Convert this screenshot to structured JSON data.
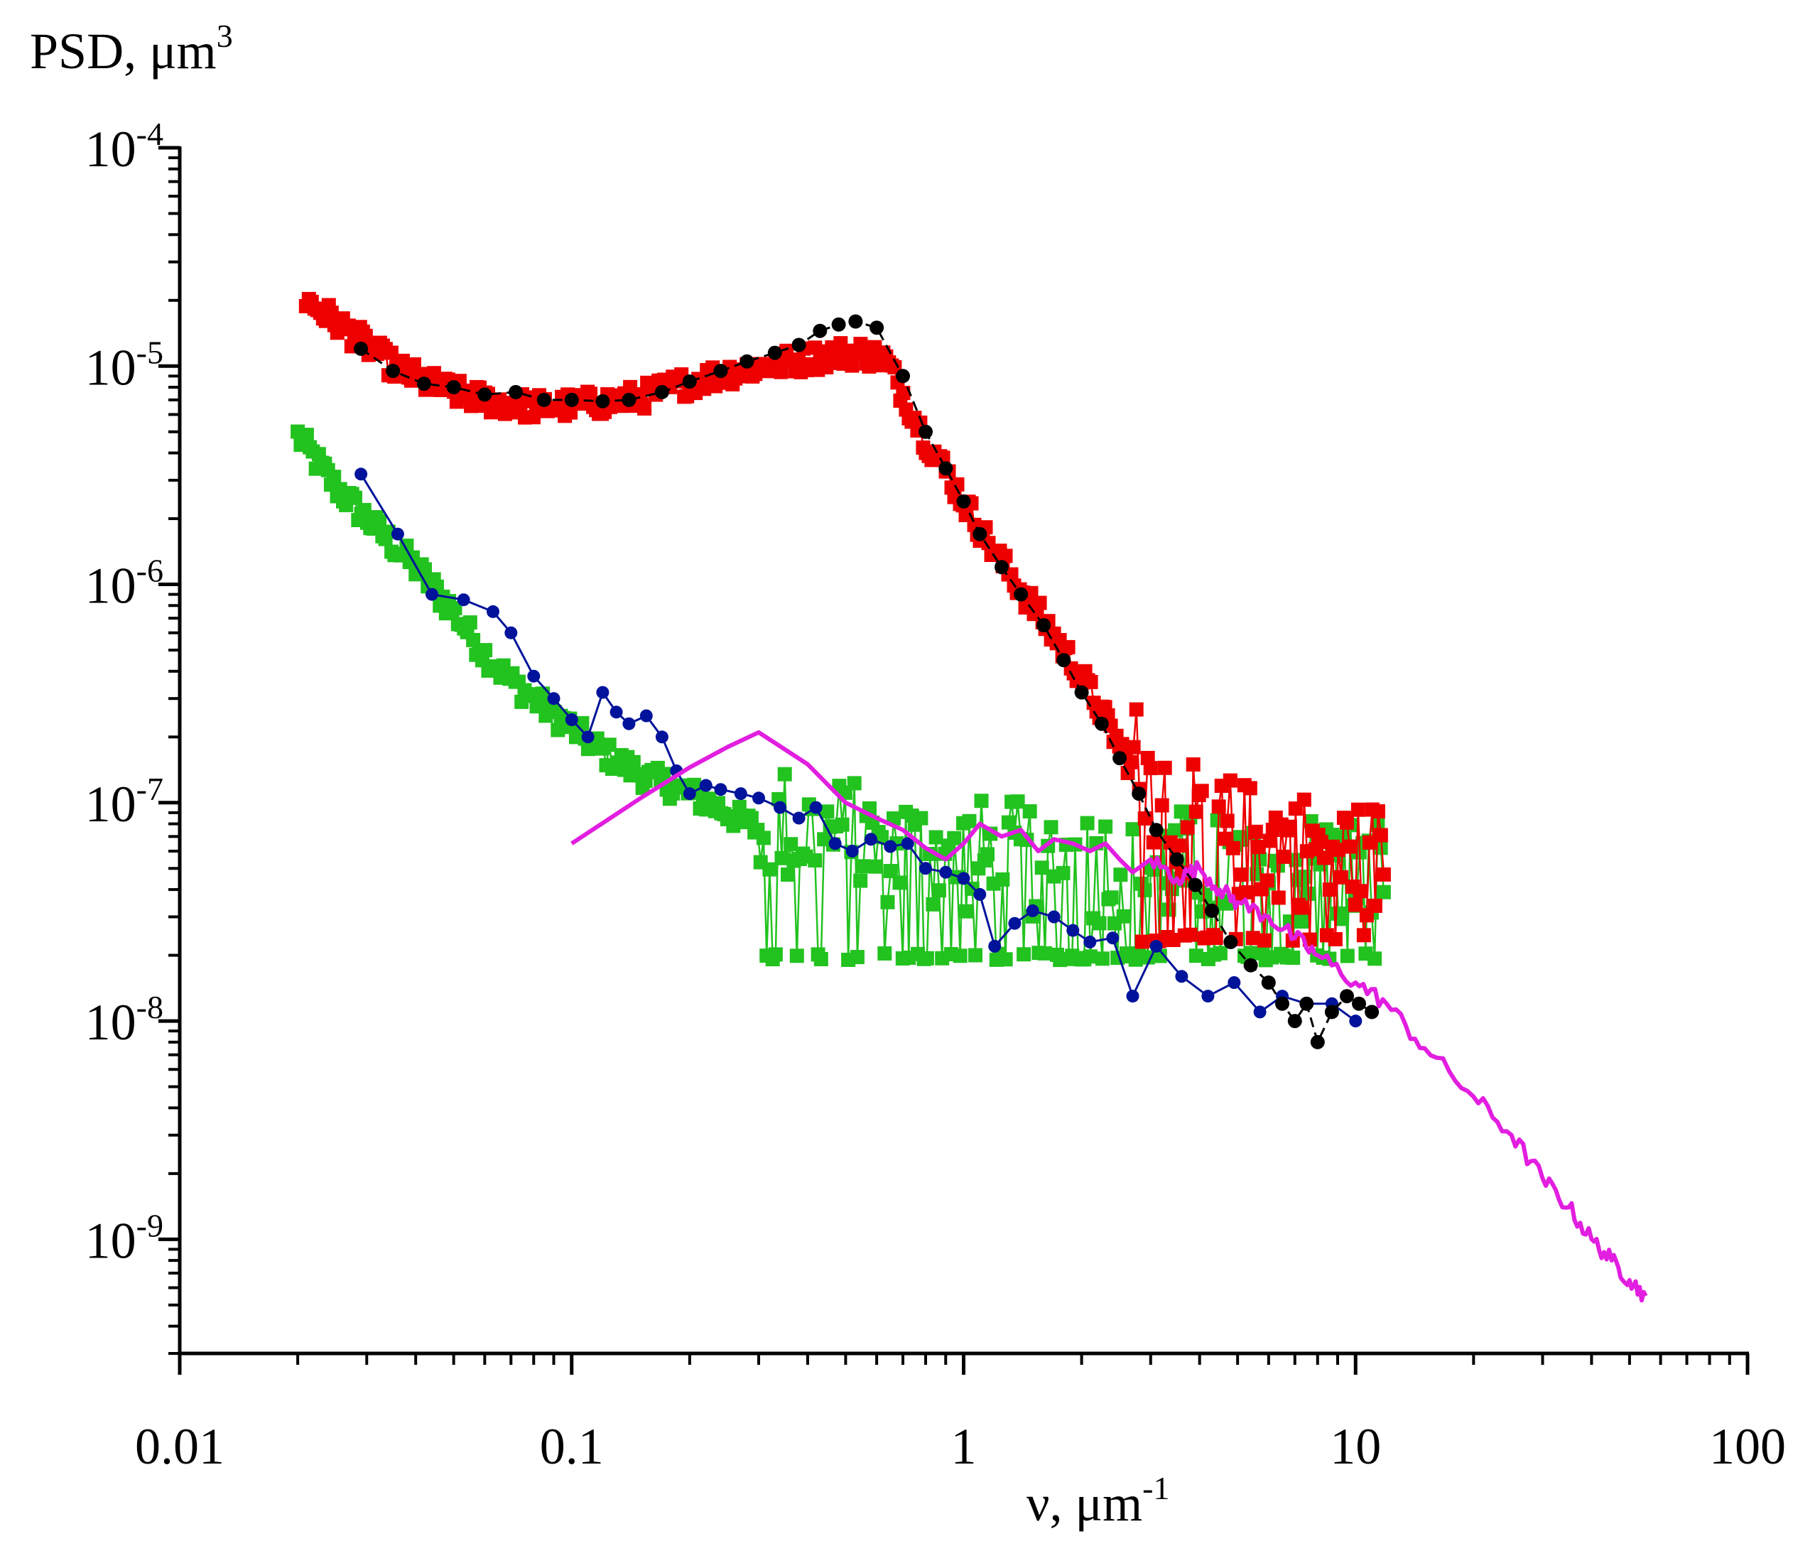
{
  "chart_data": {
    "type": "scatter",
    "xscale": "log",
    "yscale": "log",
    "xlim": [
      0.01,
      100
    ],
    "ylim": [
      3e-10,
      0.0001
    ],
    "ylabel_base": "PSD, μm",
    "ylabel_sup": "3",
    "xlabel_base": "ν, μm",
    "xlabel_sup": "-1",
    "x_ticks": [
      {
        "value": 0.01,
        "label": "0.01"
      },
      {
        "value": 0.1,
        "label": "0.1"
      },
      {
        "value": 1,
        "label": "1"
      },
      {
        "value": 10,
        "label": "10"
      },
      {
        "value": 100,
        "label": "100"
      }
    ],
    "y_ticks": [
      {
        "value": 0.0001,
        "base": "10",
        "exp": "-4"
      },
      {
        "value": 1e-05,
        "base": "10",
        "exp": "-5"
      },
      {
        "value": 1e-06,
        "base": "10",
        "exp": "-6"
      },
      {
        "value": 1e-07,
        "base": "10",
        "exp": "-7"
      },
      {
        "value": 1e-08,
        "base": "10",
        "exp": "-8"
      },
      {
        "value": 1e-09,
        "base": "10",
        "exp": "-9"
      }
    ],
    "series": [
      {
        "name": "black circles",
        "color": "#000000",
        "marker": "circle",
        "line": "dashed",
        "points": [
          [
            0.029,
            1.2e-05
          ],
          [
            0.035,
            9.5e-06
          ],
          [
            0.042,
            8.3e-06
          ],
          [
            0.05,
            8e-06
          ],
          [
            0.06,
            7.4e-06
          ],
          [
            0.072,
            7.6e-06
          ],
          [
            0.085,
            7e-06
          ],
          [
            0.1,
            7e-06
          ],
          [
            0.12,
            6.9e-06
          ],
          [
            0.14,
            7e-06
          ],
          [
            0.17,
            7.6e-06
          ],
          [
            0.2,
            8.5e-06
          ],
          [
            0.24,
            9.5e-06
          ],
          [
            0.28,
            1.05e-05
          ],
          [
            0.33,
            1.15e-05
          ],
          [
            0.38,
            1.25e-05
          ],
          [
            0.43,
            1.45e-05
          ],
          [
            0.48,
            1.55e-05
          ],
          [
            0.53,
            1.6e-05
          ],
          [
            0.6,
            1.5e-05
          ],
          [
            0.7,
            9e-06
          ],
          [
            0.8,
            5e-06
          ],
          [
            0.9,
            3.4e-06
          ],
          [
            1.0,
            2.4e-06
          ],
          [
            1.1,
            1.7e-06
          ],
          [
            1.25,
            1.2e-06
          ],
          [
            1.4,
            9e-07
          ],
          [
            1.6,
            6.5e-07
          ],
          [
            1.8,
            4.5e-07
          ],
          [
            2.0,
            3.2e-07
          ],
          [
            2.25,
            2.3e-07
          ],
          [
            2.5,
            1.6e-07
          ],
          [
            2.8,
            1.1e-07
          ],
          [
            3.1,
            7.5e-08
          ],
          [
            3.5,
            5.5e-08
          ],
          [
            3.9,
            4.2e-08
          ],
          [
            4.3,
            3.2e-08
          ],
          [
            4.8,
            2.3e-08
          ],
          [
            5.4,
            1.8e-08
          ],
          [
            6.0,
            1.5e-08
          ],
          [
            6.5,
            1.2e-08
          ],
          [
            7.0,
            1e-08
          ],
          [
            7.5,
            1.2e-08
          ],
          [
            8.0,
            8e-09
          ],
          [
            8.7,
            1.1e-08
          ],
          [
            9.5,
            1.3e-08
          ],
          [
            10.2,
            1.2e-08
          ],
          [
            11.0,
            1.1e-08
          ]
        ]
      },
      {
        "name": "blue circles",
        "color": "#00139a",
        "marker": "circle",
        "line": "solid",
        "points": [
          [
            0.029,
            3.2e-06
          ],
          [
            0.036,
            1.7e-06
          ],
          [
            0.044,
            9e-07
          ],
          [
            0.053,
            8.5e-07
          ],
          [
            0.063,
            7.5e-07
          ],
          [
            0.07,
            6e-07
          ],
          [
            0.08,
            3.8e-07
          ],
          [
            0.09,
            3e-07
          ],
          [
            0.1,
            2.4e-07
          ],
          [
            0.11,
            2e-07
          ],
          [
            0.12,
            3.2e-07
          ],
          [
            0.13,
            2.6e-07
          ],
          [
            0.14,
            2.3e-07
          ],
          [
            0.155,
            2.5e-07
          ],
          [
            0.17,
            2e-07
          ],
          [
            0.185,
            1.4e-07
          ],
          [
            0.2,
            1.1e-07
          ],
          [
            0.22,
            1.2e-07
          ],
          [
            0.24,
            1.15e-07
          ],
          [
            0.27,
            1.1e-07
          ],
          [
            0.3,
            1.05e-07
          ],
          [
            0.34,
            9.5e-08
          ],
          [
            0.38,
            8.5e-08
          ],
          [
            0.42,
            9.5e-08
          ],
          [
            0.47,
            6.5e-08
          ],
          [
            0.52,
            6e-08
          ],
          [
            0.58,
            6.8e-08
          ],
          [
            0.65,
            6.3e-08
          ],
          [
            0.72,
            6.5e-08
          ],
          [
            0.8,
            5e-08
          ],
          [
            0.9,
            4.8e-08
          ],
          [
            1.0,
            4.5e-08
          ],
          [
            1.1,
            3.8e-08
          ],
          [
            1.2,
            2.2e-08
          ],
          [
            1.35,
            2.8e-08
          ],
          [
            1.5,
            3.2e-08
          ],
          [
            1.7,
            3e-08
          ],
          [
            1.9,
            2.6e-08
          ],
          [
            2.1,
            2.3e-08
          ],
          [
            2.4,
            2.4e-08
          ],
          [
            2.7,
            1.3e-08
          ],
          [
            3.1,
            2.2e-08
          ],
          [
            3.6,
            1.6e-08
          ],
          [
            4.2,
            1.3e-08
          ],
          [
            4.9,
            1.5e-08
          ],
          [
            5.7,
            1.1e-08
          ],
          [
            6.5,
            1.3e-08
          ],
          [
            7.5,
            1.2e-08
          ],
          [
            8.7,
            1.2e-08
          ],
          [
            10.0,
            1e-08
          ]
        ]
      },
      {
        "name": "red squares",
        "color": "#ee0000",
        "marker": "square",
        "line": "solid",
        "trend": [
          [
            0.021,
            2e-05
          ],
          [
            0.025,
            1.6e-05
          ],
          [
            0.03,
            1.25e-05
          ],
          [
            0.035,
            1e-05
          ],
          [
            0.042,
            8.5e-06
          ],
          [
            0.05,
            7.6e-06
          ],
          [
            0.06,
            7e-06
          ],
          [
            0.07,
            6.7e-06
          ],
          [
            0.08,
            6.5e-06
          ],
          [
            0.1,
            6.6e-06
          ],
          [
            0.12,
            6.8e-06
          ],
          [
            0.15,
            7.2e-06
          ],
          [
            0.18,
            8e-06
          ],
          [
            0.22,
            8.8e-06
          ],
          [
            0.27,
            9.6e-06
          ],
          [
            0.33,
            1.02e-05
          ],
          [
            0.4,
            1.08e-05
          ],
          [
            0.48,
            1.14e-05
          ],
          [
            0.55,
            1.15e-05
          ],
          [
            0.63,
            1.08e-05
          ],
          [
            0.7,
            7.5e-06
          ],
          [
            0.8,
            4.6e-06
          ],
          [
            0.9,
            3.3e-06
          ],
          [
            1.0,
            2.4e-06
          ],
          [
            1.2,
            1.4e-06
          ],
          [
            1.4,
            9.5e-07
          ],
          [
            1.6,
            6.8e-07
          ],
          [
            1.8,
            5e-07
          ],
          [
            2.0,
            3.8e-07
          ],
          [
            2.3,
            2.4e-07
          ],
          [
            2.6,
            1.6e-07
          ],
          [
            3.0,
            1.1e-07
          ],
          [
            3.5,
            8e-08
          ],
          [
            4.0,
            7e-08
          ],
          [
            5.0,
            6e-08
          ],
          [
            7.0,
            5.5e-08
          ],
          [
            9.0,
            5e-08
          ],
          [
            11.8,
            4.8e-08
          ]
        ],
        "floor": 2.3e-08,
        "noise_xrange": [
          2.7,
          11.8
        ]
      },
      {
        "name": "green squares",
        "color": "#22c21f",
        "marker": "square",
        "line": "solid",
        "trend": [
          [
            0.02,
            4.8e-06
          ],
          [
            0.025,
            2.8e-06
          ],
          [
            0.03,
            2e-06
          ],
          [
            0.04,
            1.2e-06
          ],
          [
            0.05,
            7.5e-07
          ],
          [
            0.06,
            4.8e-07
          ],
          [
            0.07,
            3.6e-07
          ],
          [
            0.08,
            3e-07
          ],
          [
            0.1,
            2.2e-07
          ],
          [
            0.12,
            1.7e-07
          ],
          [
            0.15,
            1.35e-07
          ],
          [
            0.2,
            1.1e-07
          ],
          [
            0.25,
            9e-08
          ],
          [
            0.3,
            7.5e-08
          ],
          [
            0.4,
            6.5e-08
          ],
          [
            0.5,
            6e-08
          ],
          [
            0.7,
            5.5e-08
          ],
          [
            1.0,
            5e-08
          ],
          [
            1.5,
            4.8e-08
          ],
          [
            2.0,
            4.6e-08
          ],
          [
            3.0,
            4.5e-08
          ],
          [
            5.0,
            4.4e-08
          ],
          [
            8.0,
            4.3e-08
          ],
          [
            11.8,
            4.2e-08
          ]
        ],
        "floor": 1.9e-08,
        "noise_xrange": [
          0.3,
          11.8
        ]
      },
      {
        "name": "magenta line",
        "color": "#e21ee0",
        "marker": "none",
        "line": "solid",
        "points": [
          [
            0.1,
            6.5e-08
          ],
          [
            0.15,
            1.05e-07
          ],
          [
            0.2,
            1.45e-07
          ],
          [
            0.25,
            1.8e-07
          ],
          [
            0.3,
            2.1e-07
          ],
          [
            0.4,
            1.5e-07
          ],
          [
            0.5,
            1e-07
          ],
          [
            0.6,
            8.5e-08
          ],
          [
            0.7,
            7.5e-08
          ],
          [
            0.8,
            6.2e-08
          ],
          [
            0.9,
            5.5e-08
          ],
          [
            1.0,
            6.5e-08
          ],
          [
            1.1,
            8e-08
          ],
          [
            1.25,
            7e-08
          ],
          [
            1.4,
            7.5e-08
          ],
          [
            1.55,
            6e-08
          ],
          [
            1.7,
            6.8e-08
          ],
          [
            1.9,
            6.5e-08
          ],
          [
            2.1,
            6e-08
          ],
          [
            2.3,
            6.5e-08
          ],
          [
            2.5,
            5.5e-08
          ],
          [
            2.7,
            4.8e-08
          ],
          [
            3.0,
            5.5e-08
          ],
          [
            3.5,
            4.5e-08
          ],
          [
            4.0,
            5e-08
          ],
          [
            4.5,
            4e-08
          ],
          [
            5.0,
            3.5e-08
          ],
          [
            6.0,
            3e-08
          ],
          [
            7.0,
            2.4e-08
          ],
          [
            8.0,
            2e-08
          ],
          [
            10.0,
            1.5e-08
          ],
          [
            12.0,
            1.2e-08
          ],
          [
            15.0,
            7.5e-09
          ],
          [
            20.0,
            4.5e-09
          ],
          [
            25.0,
            3e-09
          ],
          [
            30.0,
            1.9e-09
          ],
          [
            35.0,
            1.4e-09
          ],
          [
            40.0,
            1e-09
          ],
          [
            45.0,
            8e-10
          ],
          [
            50.0,
            6.5e-10
          ],
          [
            55.0,
            5.5e-10
          ]
        ]
      }
    ]
  }
}
